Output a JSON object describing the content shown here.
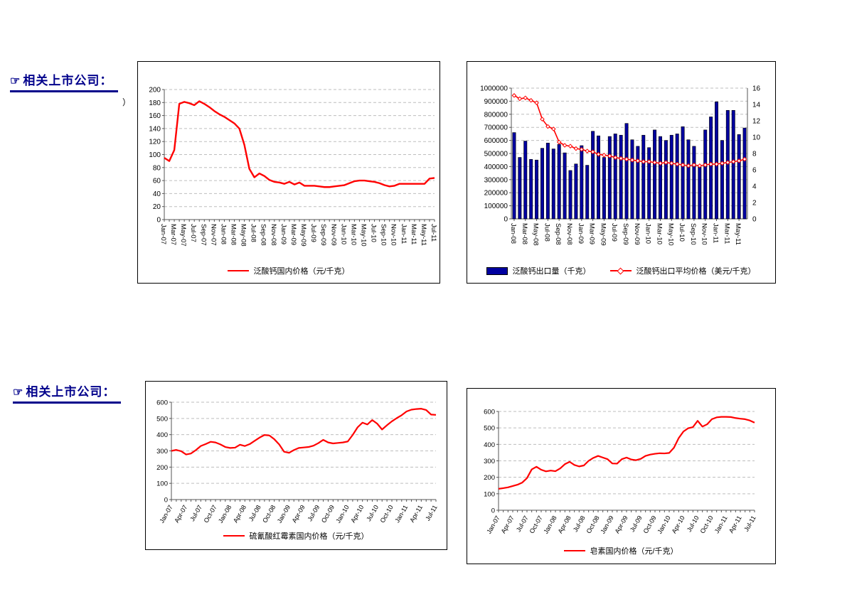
{
  "page": {
    "background": "#ffffff"
  },
  "headings": {
    "icon_glyph": "☞",
    "color": "#00008B",
    "items": [
      {
        "text": "相关上市公司："
      },
      {
        "text": "相关上市公司："
      }
    ]
  },
  "artifacts": {
    "chart1_yaxis_fragment": "）",
    "chart3_yaxis_fragment": "、"
  },
  "chart_data": [
    {
      "id": "pantothenate-domestic-price",
      "type": "line",
      "x": [
        "Jan-07",
        "Feb-07",
        "Mar-07",
        "Apr-07",
        "May-07",
        "Jun-07",
        "Jul-07",
        "Aug-07",
        "Sep-07",
        "Oct-07",
        "Nov-07",
        "Dec-07",
        "Jan-08",
        "Feb-08",
        "Mar-08",
        "Apr-08",
        "May-08",
        "Jun-08",
        "Jul-08",
        "Aug-08",
        "Sep-08",
        "Oct-08",
        "Nov-08",
        "Dec-08",
        "Jan-09",
        "Feb-09",
        "Mar-09",
        "Apr-09",
        "May-09",
        "Jun-09",
        "Jul-09",
        "Aug-09",
        "Sep-09",
        "Oct-09",
        "Nov-09",
        "Dec-09",
        "Jan-10",
        "Feb-10",
        "Mar-10",
        "Apr-10",
        "May-10",
        "Jun-10",
        "Jul-10",
        "Aug-10",
        "Sep-10",
        "Oct-10",
        "Nov-10",
        "Dec-10",
        "Jan-11",
        "Feb-11",
        "Mar-11",
        "Apr-11",
        "May-11",
        "Jun-11",
        "Jul-11"
      ],
      "x_label_every": 2,
      "ylim": [
        0,
        200
      ],
      "ystep": 20,
      "grid": "horizontal-dashed",
      "legend_position": "bottom",
      "series": [
        {
          "name": "泛酸钙国内价格（元/千克）",
          "type": "line",
          "color": "#FF0000",
          "values": [
            95,
            90,
            107,
            178,
            181,
            179,
            176,
            182,
            178,
            173,
            167,
            162,
            158,
            153,
            148,
            140,
            115,
            78,
            65,
            71,
            67,
            61,
            58,
            57,
            55,
            58,
            54,
            57,
            52,
            52,
            52,
            51,
            50,
            50,
            51,
            52,
            53,
            56,
            59,
            60,
            60,
            59,
            58,
            56,
            53,
            51,
            52,
            55,
            55,
            55,
            55,
            55,
            55,
            63,
            64
          ]
        }
      ]
    },
    {
      "id": "pantothenate-exports",
      "type": "bar+line",
      "x": [
        "Jan-08",
        "Feb-08",
        "Mar-08",
        "Apr-08",
        "May-08",
        "Jun-08",
        "Jul-08",
        "Aug-08",
        "Sep-08",
        "Oct-08",
        "Nov-08",
        "Dec-08",
        "Jan-09",
        "Feb-09",
        "Mar-09",
        "Apr-09",
        "May-09",
        "Jun-09",
        "Jul-09",
        "Aug-09",
        "Sep-09",
        "Oct-09",
        "Nov-09",
        "Dec-09",
        "Jan-10",
        "Feb-10",
        "Mar-10",
        "Apr-10",
        "May-10",
        "Jun-10",
        "Jul-10",
        "Aug-10",
        "Sep-10",
        "Oct-10",
        "Nov-10",
        "Dec-10",
        "Jan-11",
        "Feb-11",
        "Mar-11",
        "Apr-11",
        "May-11",
        "Jun-11"
      ],
      "x_label_every": 2,
      "ylim": [
        0,
        1000000
      ],
      "ystep": 100000,
      "y2lim": [
        0,
        16
      ],
      "y2step": 2,
      "grid": "horizontal-dashed",
      "legend_position": "bottom",
      "series": [
        {
          "name": "泛酸钙出口量（千克）",
          "type": "bar",
          "color": "#0000A0",
          "axis": "left",
          "values": [
            660000,
            470000,
            595000,
            455000,
            450000,
            540000,
            580000,
            535000,
            570000,
            505000,
            370000,
            420000,
            560000,
            410000,
            670000,
            635000,
            470000,
            630000,
            650000,
            640000,
            730000,
            605000,
            555000,
            640000,
            545000,
            680000,
            630000,
            600000,
            640000,
            650000,
            705000,
            605000,
            555000,
            395000,
            680000,
            780000,
            895000,
            600000,
            830000,
            830000,
            645000,
            695000
          ]
        },
        {
          "name": "泛酸钙出口平均价格（美元/千克）",
          "type": "line",
          "color": "#FF0000",
          "axis": "right",
          "marker": "diamond",
          "values": [
            15.1,
            14.7,
            14.8,
            14.5,
            14.2,
            12.2,
            11.3,
            11.0,
            9.4,
            9.0,
            8.9,
            8.6,
            8.5,
            8.3,
            8.2,
            7.9,
            7.8,
            7.7,
            7.5,
            7.4,
            7.3,
            7.2,
            7.1,
            7.0,
            7.0,
            6.9,
            6.8,
            6.9,
            6.8,
            6.7,
            6.6,
            6.5,
            6.6,
            6.5,
            6.6,
            6.7,
            6.7,
            6.8,
            6.9,
            7.0,
            7.1,
            7.3
          ]
        }
      ]
    },
    {
      "id": "erythromycin-thiocyanate-domestic-price",
      "type": "line",
      "x": [
        "Jan-07",
        "Feb-07",
        "Mar-07",
        "Apr-07",
        "May-07",
        "Jun-07",
        "Jul-07",
        "Aug-07",
        "Sep-07",
        "Oct-07",
        "Nov-07",
        "Dec-07",
        "Jan-08",
        "Feb-08",
        "Mar-08",
        "Apr-08",
        "May-08",
        "Jun-08",
        "Jul-08",
        "Aug-08",
        "Sep-08",
        "Oct-08",
        "Nov-08",
        "Dec-08",
        "Jan-09",
        "Feb-09",
        "Mar-09",
        "Apr-09",
        "May-09",
        "Jun-09",
        "Jul-09",
        "Aug-09",
        "Sep-09",
        "Oct-09",
        "Nov-09",
        "Dec-09",
        "Jan-10",
        "Feb-10",
        "Mar-10",
        "Apr-10",
        "May-10",
        "Jun-10",
        "Jul-10",
        "Aug-10",
        "Sep-10",
        "Oct-10",
        "Nov-10",
        "Dec-10",
        "Jan-11",
        "Feb-11",
        "Mar-11",
        "Apr-11",
        "May-11",
        "Jun-11",
        "Jul-11"
      ],
      "x_label_every": 3,
      "ylim": [
        0,
        600
      ],
      "ystep": 100,
      "grid": "horizontal-dashed",
      "legend_position": "bottom",
      "series": [
        {
          "name": "硫氰酸红霉素国内价格（元/千克）",
          "type": "line",
          "color": "#FF0000",
          "values": [
            300,
            306,
            298,
            278,
            284,
            305,
            330,
            342,
            356,
            352,
            340,
            324,
            318,
            320,
            338,
            330,
            342,
            362,
            382,
            398,
            395,
            372,
            340,
            295,
            288,
            305,
            318,
            321,
            324,
            332,
            348,
            368,
            352,
            346,
            349,
            352,
            358,
            398,
            445,
            474,
            463,
            490,
            468,
            432,
            458,
            482,
            502,
            520,
            543,
            554,
            558,
            560,
            552,
            524,
            522
          ]
        }
      ]
    },
    {
      "id": "saponin-domestic-price",
      "type": "line",
      "x": [
        "Jan-07",
        "Feb-07",
        "Mar-07",
        "Apr-07",
        "May-07",
        "Jun-07",
        "Jul-07",
        "Aug-07",
        "Sep-07",
        "Oct-07",
        "Nov-07",
        "Dec-07",
        "Jan-08",
        "Feb-08",
        "Mar-08",
        "Apr-08",
        "May-08",
        "Jun-08",
        "Jul-08",
        "Aug-08",
        "Sep-08",
        "Oct-08",
        "Nov-08",
        "Dec-08",
        "Jan-09",
        "Feb-09",
        "Mar-09",
        "Apr-09",
        "May-09",
        "Jun-09",
        "Jul-09",
        "Aug-09",
        "Sep-09",
        "Oct-09",
        "Nov-09",
        "Dec-09",
        "Jan-10",
        "Feb-10",
        "Mar-10",
        "Apr-10",
        "May-10",
        "Jun-10",
        "Jul-10",
        "Aug-10",
        "Sep-10",
        "Oct-10",
        "Nov-10",
        "Dec-10",
        "Jan-11",
        "Feb-11",
        "Mar-11",
        "Apr-11",
        "May-11",
        "Jun-11",
        "Jul-11"
      ],
      "x_label_every": 3,
      "ylim": [
        0,
        600
      ],
      "ystep": 100,
      "grid": "horizontal-dashed",
      "legend_position": "bottom",
      "series": [
        {
          "name": "皂素国内价格（元/千克）",
          "type": "line",
          "color": "#FF0000",
          "values": [
            130,
            134,
            139,
            147,
            155,
            168,
            195,
            248,
            264,
            246,
            236,
            241,
            237,
            254,
            280,
            294,
            275,
            266,
            272,
            300,
            318,
            330,
            320,
            310,
            284,
            283,
            310,
            320,
            308,
            304,
            312,
            330,
            338,
            343,
            346,
            345,
            348,
            380,
            438,
            478,
            498,
            505,
            543,
            508,
            522,
            553,
            564,
            567,
            567,
            566,
            560,
            556,
            553,
            545,
            532
          ]
        }
      ]
    }
  ]
}
